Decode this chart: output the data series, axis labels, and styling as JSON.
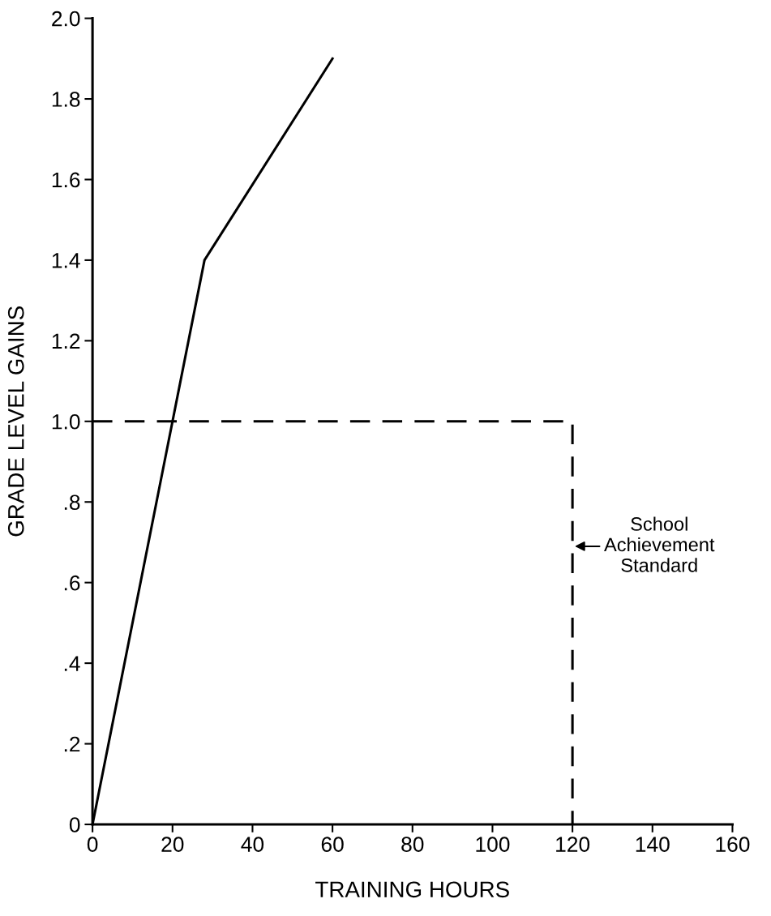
{
  "chart_data": {
    "type": "line",
    "xlabel": "TRAINING HOURS",
    "ylabel": "GRADE LEVEL GAINS",
    "series": [
      {
        "color": "#000000",
        "line_style": "solid",
        "x": [
          0,
          28,
          60
        ],
        "values": [
          0,
          1.4,
          1.9
        ]
      },
      {
        "color": "#000000",
        "line_style": "dashed",
        "x": [
          0,
          120,
          120
        ],
        "values": [
          1.0,
          1.0,
          0
        ]
      }
    ],
    "annotations": [
      {
        "text": "School\nAchievement\nStandard",
        "x": 120,
        "y": 0.69
      }
    ],
    "xlim": [
      0,
      160
    ],
    "xticks": [
      0,
      20,
      40,
      60,
      80,
      100,
      120,
      140,
      160
    ],
    "ylim": [
      0,
      2.0
    ],
    "yticks": [
      0,
      {
        "value": 0.2,
        "label": ".2"
      },
      {
        "value": 0.4,
        "label": ".4"
      },
      {
        "value": 0.6,
        "label": ".6"
      },
      {
        "value": 0.8,
        "label": ".8"
      },
      {
        "value": 1.0,
        "label": "1.0"
      },
      {
        "value": 1.2,
        "label": "1.2"
      },
      {
        "value": 1.4,
        "label": "1.4"
      },
      {
        "value": 1.6,
        "label": "1.6"
      },
      {
        "value": 1.8,
        "label": "1.8"
      },
      {
        "value": 2.0,
        "label": "2.0"
      }
    ],
    "grid": false,
    "legend": false,
    "marker": "none"
  }
}
